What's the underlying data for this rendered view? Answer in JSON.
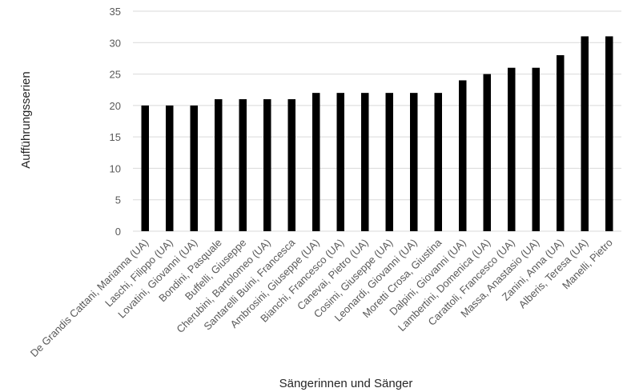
{
  "chart_data": {
    "type": "bar",
    "title": "",
    "xlabel": "Sängerinnen und Sänger",
    "ylabel": "Aufführungsserien",
    "ylim": [
      0,
      35
    ],
    "yticks": [
      0,
      5,
      10,
      15,
      20,
      25,
      30,
      35
    ],
    "grid": true,
    "bar_color": "#000000",
    "categories": [
      "De Grandis Cattani, Marianna (UA)",
      "Laschi, Filippo (UA)",
      "Lovatini, Giovanni (UA)",
      "Bondini, Pasquale",
      "Buffelli, Giuseppe",
      "Cherubini, Bartolomeo (UA)",
      "Santarelli Buini, Francesca",
      "Ambrosini, Giuseppe (UA)",
      "Bianchi, Francesco (UA)",
      "Canevai, Pietro (UA)",
      "Cosimi, Giuseppe (UA)",
      "Leonardi, Giovanni (UA)",
      "Moretti Crosa, Giustina",
      "Dalpini, Giovanni (UA)",
      "Lambertini, Domenica (UA)",
      "Carattoli, Francesco (UA)",
      "Massa, Anastasio (UA)",
      "Zanini, Anna (UA)",
      "Alberis, Teresa (UA)",
      "Manelli, Pietro"
    ],
    "values": [
      20,
      20,
      20,
      21,
      21,
      21,
      21,
      22,
      22,
      22,
      22,
      22,
      22,
      24,
      25,
      26,
      26,
      28,
      31,
      31
    ]
  }
}
